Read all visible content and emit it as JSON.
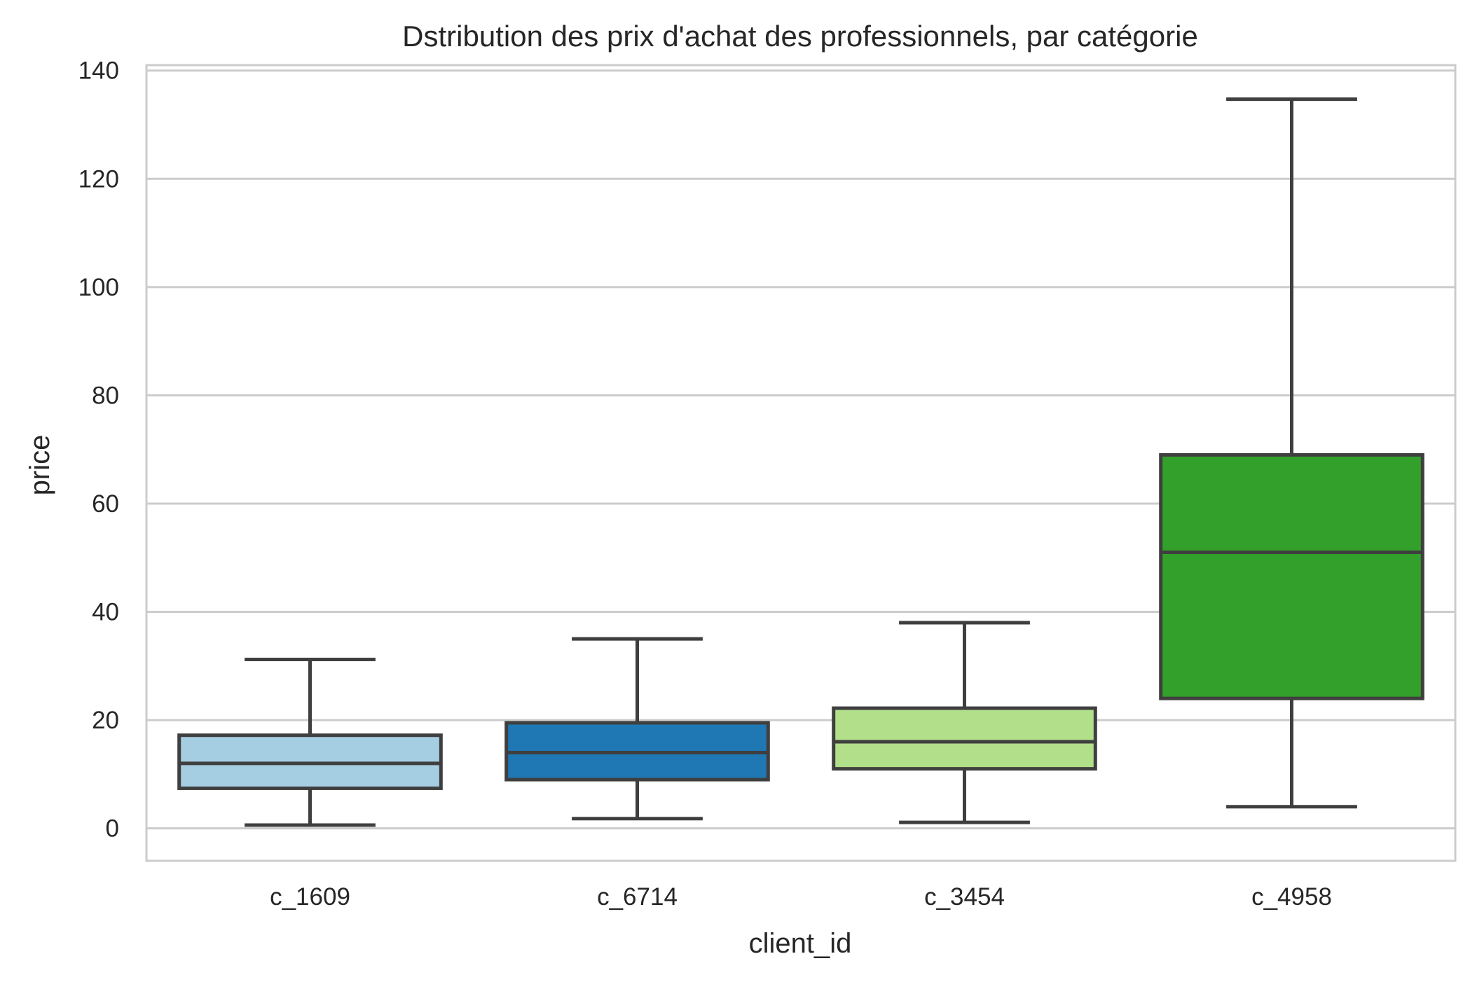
{
  "chart_data": {
    "type": "box",
    "title": "Dstribution des prix d'achat des professionnels, par catégorie",
    "xlabel": "client_id",
    "ylabel": "price",
    "ylim": [
      -6,
      141
    ],
    "yticks": [
      0,
      20,
      40,
      60,
      80,
      100,
      120,
      140
    ],
    "grid": true,
    "categories": [
      "c_1609",
      "c_6714",
      "c_3454",
      "c_4958"
    ],
    "boxes": [
      {
        "category": "c_1609",
        "whisker_low": 0.6,
        "q1": 7.4,
        "median": 12.0,
        "q3": 17.2,
        "whisker_high": 31.2,
        "color": "#a6cee3"
      },
      {
        "category": "c_6714",
        "whisker_low": 1.8,
        "q1": 9.0,
        "median": 14.0,
        "q3": 19.5,
        "whisker_high": 35.0,
        "color": "#1f78b4"
      },
      {
        "category": "c_3454",
        "whisker_low": 1.1,
        "q1": 11.0,
        "median": 16.0,
        "q3": 22.2,
        "whisker_high": 38.0,
        "color": "#b2df8a"
      },
      {
        "category": "c_4958",
        "whisker_low": 4.0,
        "q1": 24.0,
        "median": 51.0,
        "q3": 69.0,
        "whisker_high": 134.7,
        "color": "#33a02c"
      }
    ],
    "style": {
      "grid_color": "#cccccc",
      "frame_color": "#cccccc",
      "line_color": "#3f3f3f"
    }
  }
}
